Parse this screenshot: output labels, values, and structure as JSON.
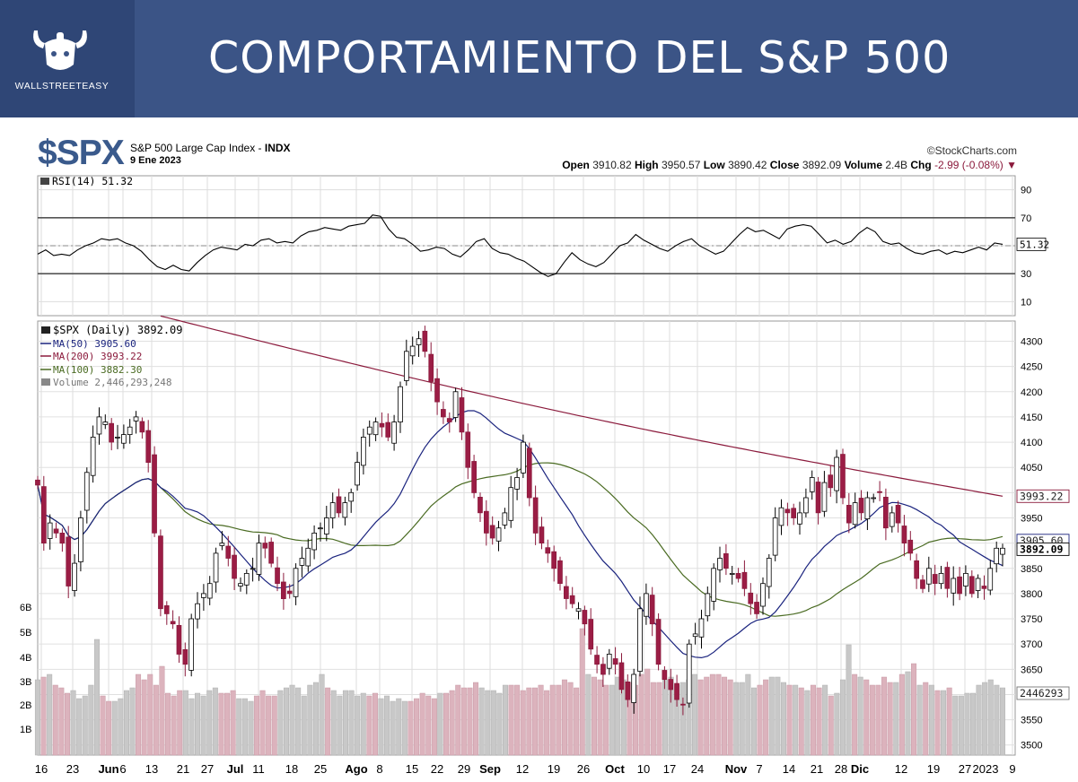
{
  "banner": {
    "title": "COMPORTAMIENTO DEL S&P 500",
    "brand": "WALLSTREETEASY",
    "colors": {
      "background": "#3b5486",
      "text": "#ffffff"
    }
  },
  "header": {
    "symbol": "$SPX",
    "name": "S&P 500 Large Cap Index",
    "exchange": "INDX",
    "date": "9 Ene 2023",
    "source": "©StockCharts.com",
    "open_label": "Open",
    "open": "3910.82",
    "high_label": "High",
    "high": "3950.57",
    "low_label": "Low",
    "low": "3890.42",
    "close_label": "Close",
    "close": "3892.09",
    "volume_label": "Volume",
    "volume": "2.4B",
    "chg_label": "Chg",
    "chg": "-2.99 (-0.08%)"
  },
  "chart_data": [
    {
      "type": "line",
      "title": "RSI(14) 51.32",
      "series": [
        {
          "name": "RSI(14)",
          "current_label": "51.32",
          "values": [
            44,
            47,
            43,
            44,
            43,
            47,
            50,
            52,
            55,
            54,
            55,
            52,
            50,
            46,
            40,
            35,
            33,
            36,
            33,
            32,
            38,
            43,
            47,
            49,
            48,
            47,
            51,
            50,
            54,
            55,
            52,
            53,
            52,
            57,
            60,
            61,
            63,
            62,
            61,
            64,
            65,
            66,
            72,
            71,
            62,
            56,
            55,
            51,
            46,
            47,
            49,
            48,
            44,
            42,
            47,
            53,
            55,
            48,
            45,
            44,
            41,
            39,
            35,
            31,
            28,
            30,
            38,
            45,
            40,
            37,
            35,
            38,
            44,
            50,
            52,
            58,
            54,
            51,
            48,
            46,
            50,
            53,
            55,
            50,
            47,
            44,
            46,
            52,
            58,
            63,
            60,
            61,
            58,
            55,
            62,
            64,
            65,
            64,
            58,
            52,
            54,
            51,
            53,
            59,
            63,
            60,
            53,
            51,
            52,
            48,
            45,
            44,
            46,
            47,
            44,
            46,
            45,
            47,
            49,
            47,
            52,
            51
          ]
        }
      ],
      "ylim": [
        0,
        100
      ],
      "y_ticks": [
        90,
        70,
        50,
        30,
        10
      ],
      "reference_lines": [
        70,
        30
      ],
      "grid": true
    },
    {
      "type": "candlestick",
      "title": "$SPX (Daily) 3892.09",
      "x_tick_labels": [
        "16",
        "23",
        "Jun",
        "6",
        "13",
        "21",
        "27",
        "Jul",
        "11",
        "18",
        "25",
        "Ago",
        "8",
        "15",
        "22",
        "29",
        "Sep",
        "12",
        "19",
        "26",
        "Oct",
        "10",
        "17",
        "24",
        "Nov",
        "7",
        "14",
        "21",
        "28",
        "Dic",
        "12",
        "19",
        "27",
        "2023",
        "9"
      ],
      "y_ticks": [
        4300,
        4250,
        4200,
        4150,
        4100,
        4050,
        4000,
        3950,
        3900,
        3850,
        3800,
        3750,
        3700,
        3650,
        3600,
        3550,
        3500
      ],
      "ylim": [
        3480,
        4340
      ],
      "legend": [
        {
          "label": "$SPX (Daily) 3892.09",
          "color": "#000000"
        },
        {
          "label": "MA(50) 3905.60",
          "color": "#1a237e"
        },
        {
          "label": "MA(200) 3993.22",
          "color": "#8b1a3c"
        },
        {
          "label": "MA(100) 3882.30",
          "color": "#4a6b22"
        },
        {
          "label": "Volume 2,446,293,248",
          "color": "#777777"
        }
      ],
      "price_labels": {
        "ma200": "3993.22",
        "ma50": "3905.60",
        "close": "3892.09",
        "volume": "2446293"
      },
      "closes": [
        4015,
        3900,
        3940,
        3920,
        3900,
        3815,
        3860,
        3950,
        4040,
        4110,
        4150,
        4140,
        4100,
        4110,
        4115,
        4130,
        4150,
        4120,
        4060,
        3920,
        3770,
        3760,
        3740,
        3680,
        3660,
        3750,
        3780,
        3800,
        3820,
        3880,
        3900,
        3870,
        3830,
        3820,
        3840,
        3850,
        3900,
        3890,
        3860,
        3820,
        3790,
        3800,
        3850,
        3870,
        3890,
        3920,
        3930,
        3950,
        3980,
        3960,
        3980,
        4000,
        4060,
        4110,
        4130,
        4140,
        4130,
        4110,
        4140,
        4210,
        4280,
        4290,
        4305,
        4280,
        4220,
        4180,
        4150,
        4140,
        4200,
        4120,
        4050,
        4000,
        3960,
        3920,
        3910,
        3930,
        3960,
        4010,
        4030,
        4100,
        3990,
        3920,
        3900,
        3880,
        3850,
        3820,
        3790,
        3780,
        3770,
        3740,
        3690,
        3660,
        3640,
        3680,
        3660,
        3610,
        3590,
        3640,
        3770,
        3800,
        3740,
        3660,
        3630,
        3610,
        3590,
        3580,
        3700,
        3720,
        3750,
        3800,
        3850,
        3870,
        3850,
        3840,
        3830,
        3810,
        3780,
        3760,
        3820,
        3870,
        3950,
        3970,
        3960,
        3950,
        3960,
        3990,
        4030,
        3960,
        4020,
        4010,
        4070,
        3990,
        3940,
        3980,
        3960,
        3990,
        3990,
        4000,
        3930,
        3960,
        3940,
        3900,
        3880,
        3830,
        3810,
        3850,
        3820,
        3840,
        3810,
        3830,
        3800,
        3840,
        3800,
        3830,
        3810,
        3850,
        3890,
        3890
      ]
    },
    {
      "type": "bar",
      "title": "Volume 2,446,293,248",
      "y_ticks": [
        "6B",
        "5B",
        "4B",
        "3B",
        "2B",
        "1B"
      ],
      "values": [
        2.8,
        2.9,
        3.0,
        2.6,
        2.5,
        2.3,
        2.4,
        2.1,
        2.2,
        2.6,
        4.3,
        2.2,
        2.0,
        2.0,
        2.1,
        2.4,
        2.5,
        3.0,
        2.8,
        3.0,
        2.6,
        3.3,
        2.3,
        2.2,
        2.4,
        2.4,
        2.1,
        2.3,
        2.2,
        2.4,
        2.5,
        2.3,
        2.3,
        2.4,
        2.1,
        2.1,
        2.0,
        2.2,
        2.4,
        2.2,
        2.2,
        2.4,
        2.5,
        2.6,
        2.5,
        2.2,
        2.6,
        2.7,
        3.0,
        2.5,
        2.4,
        2.2,
        2.4,
        2.4,
        2.2,
        2.3,
        2.2,
        2.3,
        2.1,
        2.2,
        2.0,
        2.1,
        2.0,
        2.0,
        2.1,
        2.3,
        2.2,
        2.1,
        2.3,
        2.3,
        2.4,
        2.6,
        2.5,
        2.5,
        2.7,
        2.5,
        2.4,
        2.4,
        2.3,
        2.6,
        2.6,
        2.6,
        2.4,
        2.5,
        2.5,
        2.6,
        2.4,
        2.6,
        2.6,
        2.8,
        2.7,
        2.5,
        4.7,
        3.0,
        2.9,
        2.8,
        2.6,
        2.6,
        2.9,
        2.8,
        2.7,
        2.6,
        3.0,
        3.2,
        2.7,
        2.7,
        2.8,
        2.9,
        2.6,
        2.7,
        2.8,
        3.0,
        2.8,
        2.9,
        3.0,
        3.0,
        2.9,
        2.8,
        2.7,
        2.7,
        3.0,
        2.5,
        2.6,
        2.8,
        2.9,
        2.9,
        2.7,
        2.6,
        2.6,
        2.5,
        2.4,
        2.6,
        2.5,
        2.6,
        2.2,
        2.3,
        2.8,
        4.1,
        3.0,
        2.9,
        2.8,
        2.6,
        2.6,
        2.9,
        2.7,
        2.7,
        3.0,
        3.1,
        3.4,
        2.6,
        2.7,
        2.6,
        2.4,
        2.4,
        2.5,
        2.2,
        2.2,
        2.3,
        2.3,
        2.6,
        2.7,
        2.8,
        2.6,
        2.5
      ],
      "ylim": [
        0,
        7
      ]
    }
  ]
}
